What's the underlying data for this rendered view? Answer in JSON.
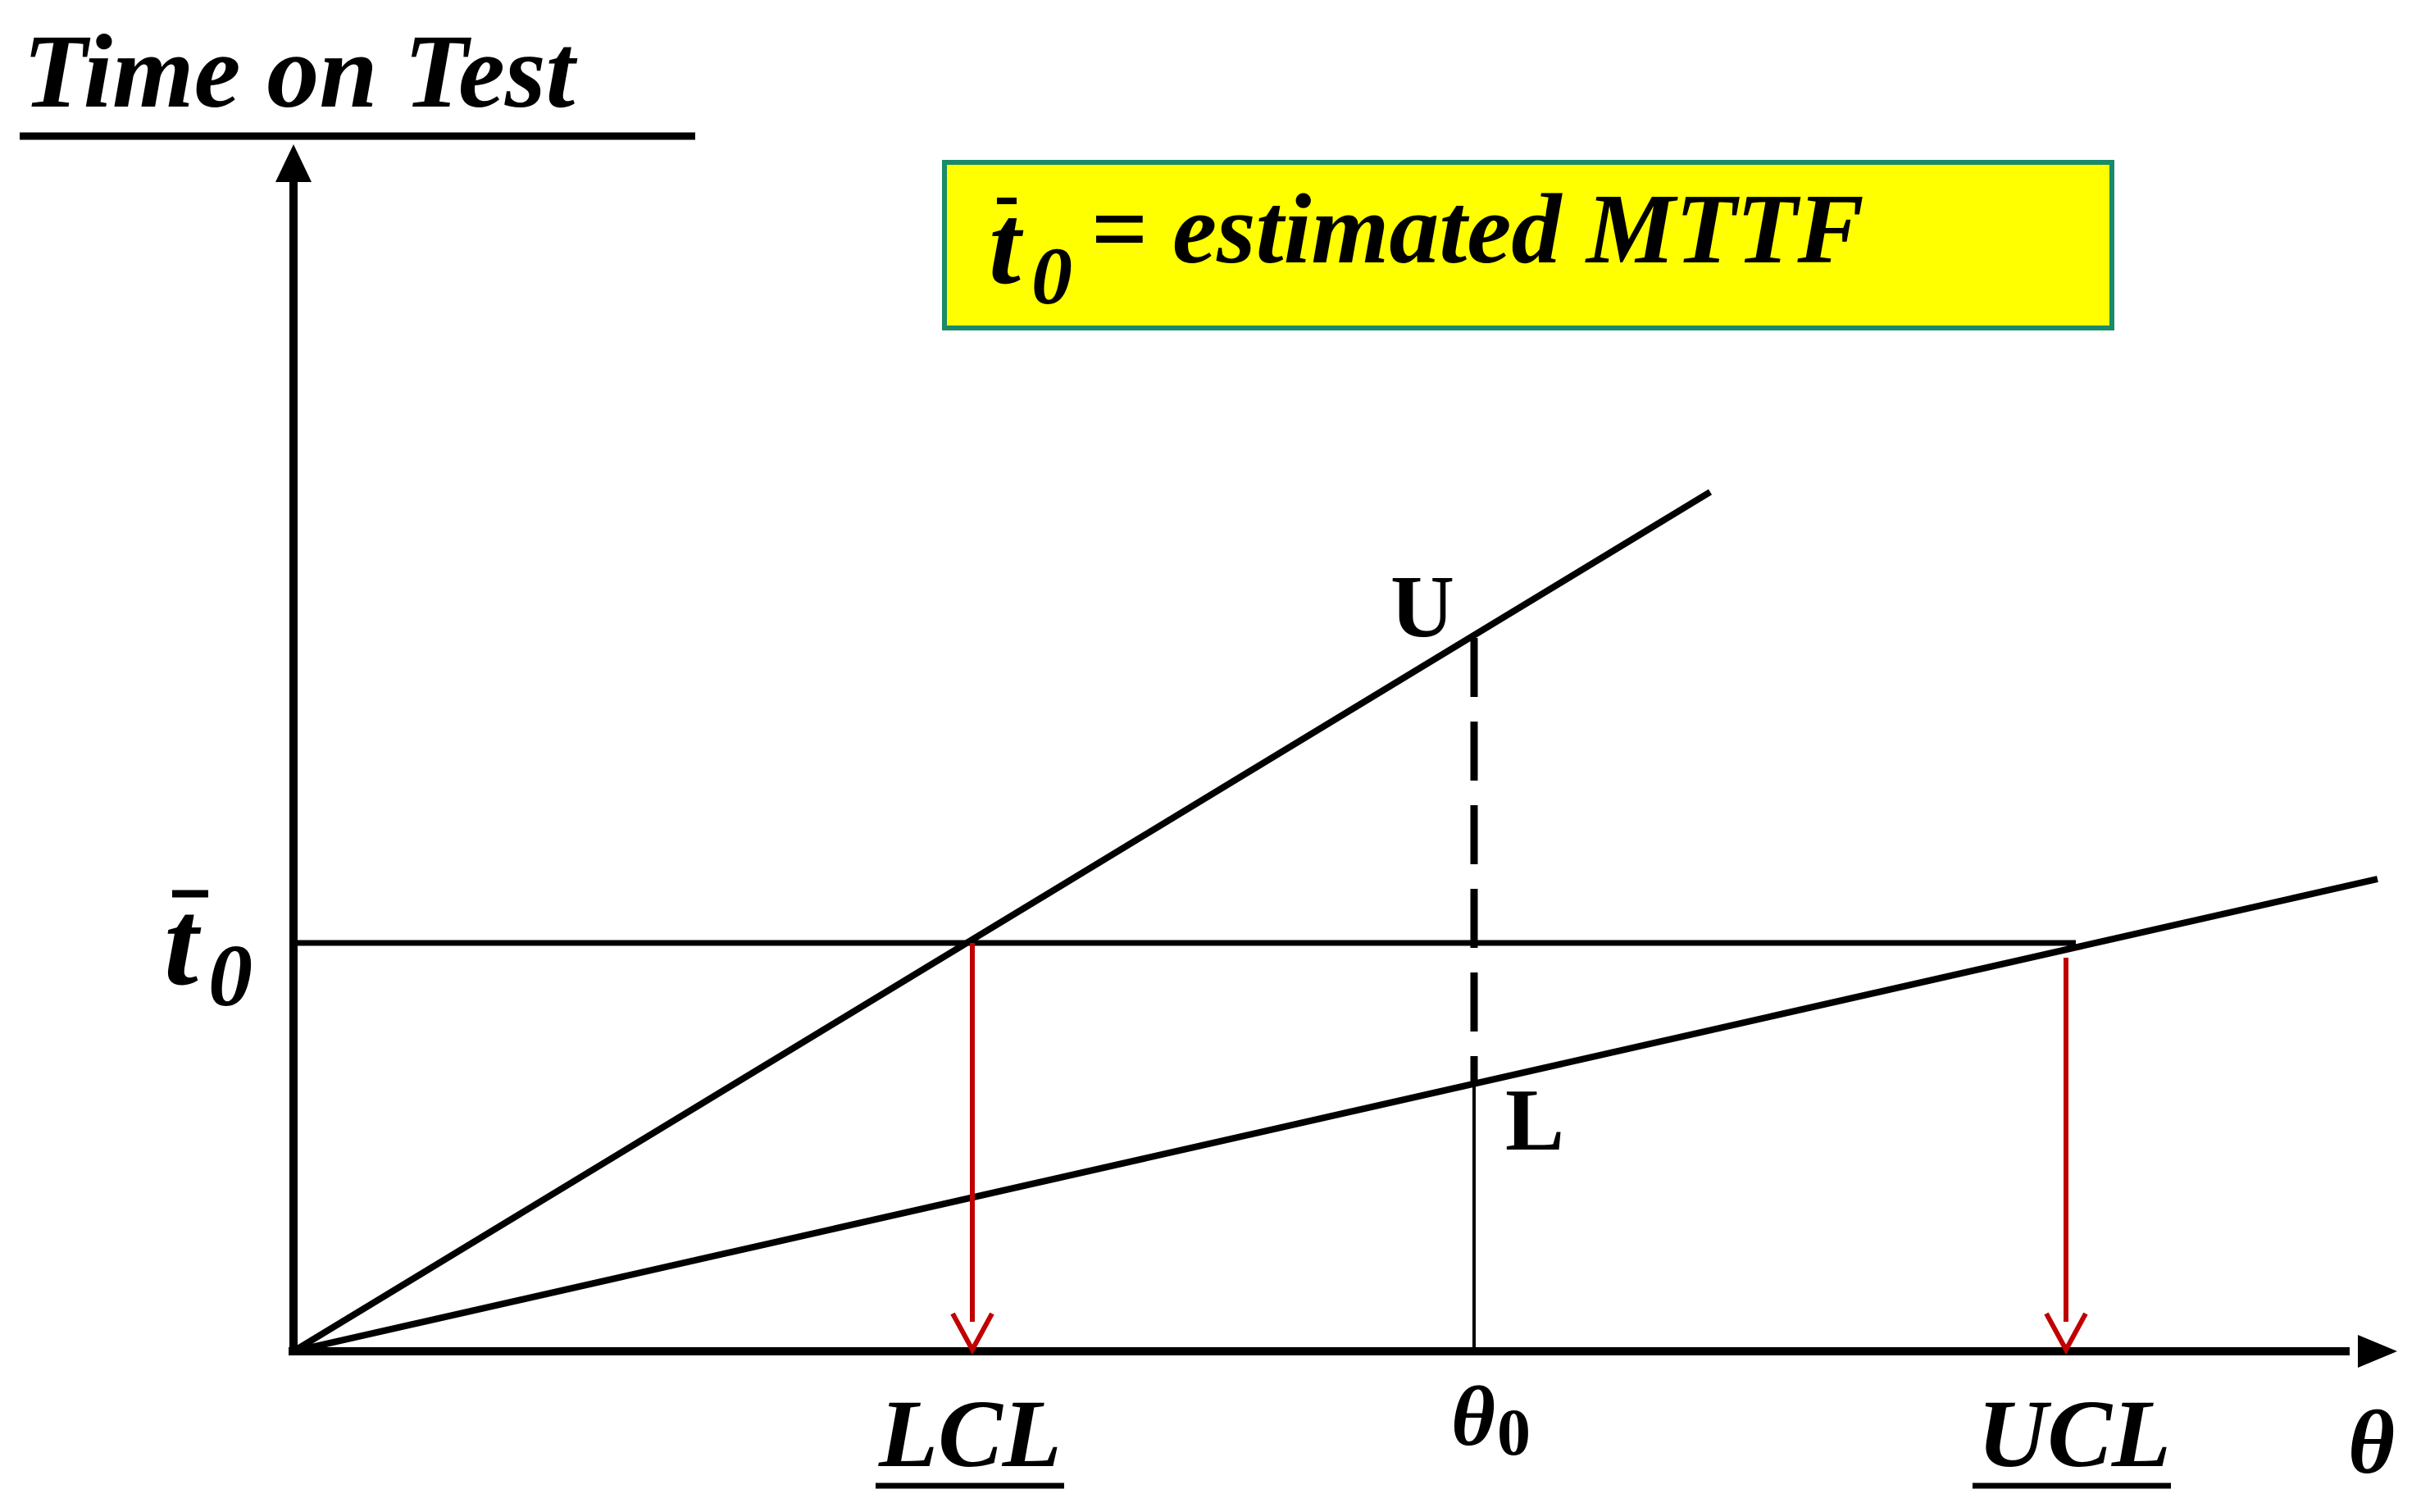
{
  "title": "Time on Test",
  "legend_box": {
    "symbol": "t",
    "symbol_subscript": "0",
    "text": "= estimated MTTF",
    "fill": "#ffff00",
    "border": "#1a8a6a"
  },
  "y_marker": {
    "symbol": "t",
    "subscript": "0"
  },
  "point_labels": {
    "upper": "U",
    "lower": "L"
  },
  "x_labels": {
    "lcl": "LCL",
    "theta0_symbol": "θ",
    "theta0_subscript": "0",
    "ucl": "UCL",
    "axis": "θ"
  },
  "colors": {
    "lines": "#000000",
    "arrows": "#c00000"
  }
}
